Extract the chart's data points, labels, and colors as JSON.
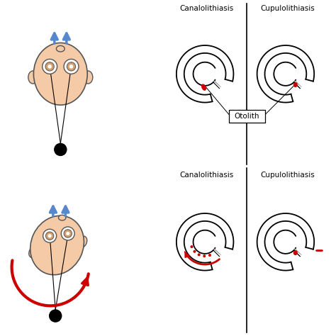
{
  "bg_color": "#ffffff",
  "skin_color": "#F5CBA7",
  "skin_outline": "#555555",
  "blue_color": "#5588CC",
  "red_color": "#CC0000",
  "black_color": "#000000",
  "gray_color": "#AAAAAA",
  "label_canal1_top": "Canalolithiasis",
  "label_cupulo1_top": "Cupulolithiasis",
  "label_canal2_bot": "Canalolithiasis",
  "label_cupulo2_bot": "Cupulolithiasis",
  "label_otolith": "Otolith"
}
